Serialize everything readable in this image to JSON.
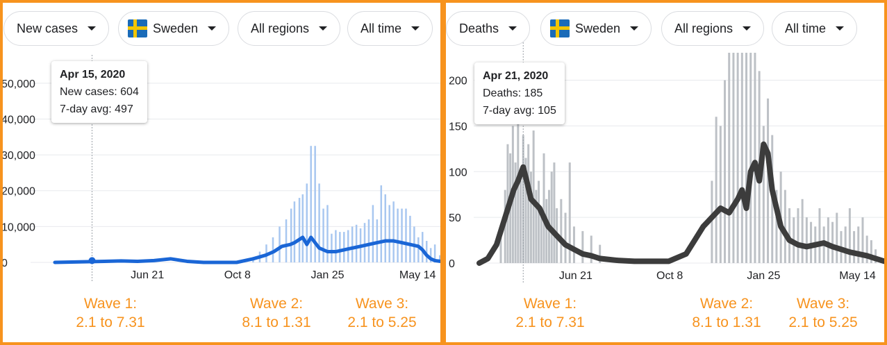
{
  "left_panel": {
    "metric_label": "New cases",
    "country_label": "Sweden",
    "region_label": "All regions",
    "time_label": "All time",
    "tooltip": {
      "date": "Apr 15, 2020",
      "value_line": "New cases: 604",
      "avg_line": "7-day avg: 497"
    },
    "waves": [
      {
        "title": "Wave 1:",
        "range": "2.1 to 7.31"
      },
      {
        "title": "Wave 2:",
        "range": "8.1 to 1.31"
      },
      {
        "title": "Wave 3:",
        "range": "2.1 to 5.25"
      }
    ]
  },
  "right_panel": {
    "metric_label": "Deaths",
    "country_label": "Sweden",
    "region_label": "All regions",
    "time_label": "All time",
    "tooltip": {
      "date": "Apr 21, 2020",
      "value_line": "Deaths: 185",
      "avg_line": "7-day avg: 105"
    },
    "waves": [
      {
        "title": "Wave 1:",
        "range": "2.1 to 7.31"
      },
      {
        "title": "Wave 2:",
        "range": "8.1 to 1.31"
      },
      {
        "title": "Wave 3:",
        "range": "2.1 to 5.25"
      }
    ]
  },
  "colors": {
    "frame": "#F7931E",
    "cases_bar": "#A8C7F0",
    "cases_line": "#1A66D6",
    "deaths_bar": "#BDC1C6",
    "deaths_line": "#3C3C3C",
    "grid": "#E8EAED",
    "flag_blue": "#1A6BB8",
    "flag_yellow": "#F2C500"
  },
  "icons": {
    "dropdown": "caret-down-icon",
    "country": "sweden-flag-icon"
  },
  "chart_data": [
    {
      "type": "bar",
      "title": "",
      "series_label": "New cases",
      "xlabel": "",
      "ylabel": "",
      "x_ticks": [
        "Jun 21",
        "Oct 8",
        "Jan 25",
        "May 14"
      ],
      "x_tick_days": [
        112,
        221,
        330,
        439
      ],
      "x_range_days": [
        0,
        470
      ],
      "x_origin": "2020-03-01",
      "y_ticks": [
        "0",
        "10,000",
        "20,000",
        "30,000",
        "40,000",
        "50,000"
      ],
      "ylim": [
        0,
        55000
      ],
      "grid": true,
      "highlight": {
        "day": 45,
        "value": 497
      },
      "bars_days": [
        240,
        248,
        256,
        264,
        272,
        280,
        286,
        290,
        296,
        300,
        305,
        310,
        315,
        320,
        325,
        330,
        335,
        340,
        345,
        350,
        355,
        360,
        365,
        370,
        375,
        380,
        385,
        390,
        395,
        400,
        405,
        410,
        415,
        420,
        425,
        430,
        435,
        440,
        445,
        450,
        455,
        460,
        466
      ],
      "bars_values": [
        1500,
        3000,
        5000,
        7000,
        10000,
        12000,
        15000,
        17000,
        18000,
        19000,
        22000,
        32500,
        32500,
        22000,
        15000,
        16000,
        8000,
        9000,
        8500,
        8500,
        9000,
        10000,
        10500,
        9500,
        11000,
        12000,
        16000,
        12000,
        21500,
        19000,
        16000,
        17000,
        15000,
        15000,
        15000,
        13000,
        10000,
        7000,
        8500,
        6000,
        4000,
        5000,
        2000
      ],
      "avg_days": [
        0,
        20,
        40,
        60,
        80,
        100,
        120,
        140,
        160,
        180,
        200,
        220,
        240,
        255,
        265,
        275,
        285,
        290,
        300,
        305,
        310,
        320,
        330,
        340,
        350,
        360,
        370,
        380,
        390,
        400,
        410,
        420,
        430,
        440,
        445,
        450,
        455,
        460,
        470
      ],
      "avg_values": [
        0,
        100,
        200,
        300,
        400,
        300,
        500,
        1000,
        300,
        0,
        0,
        0,
        1000,
        2000,
        3000,
        4500,
        5000,
        5500,
        7000,
        5000,
        7000,
        4000,
        3000,
        3000,
        3500,
        4000,
        4500,
        5000,
        5500,
        6000,
        6000,
        5500,
        5000,
        4500,
        3500,
        2000,
        1000,
        500,
        200
      ]
    },
    {
      "type": "bar",
      "title": "",
      "series_label": "Deaths",
      "xlabel": "",
      "ylabel": "",
      "x_ticks": [
        "Jun 21",
        "Oct 8",
        "Jan 25",
        "May 14"
      ],
      "x_tick_days": [
        112,
        221,
        330,
        439
      ],
      "x_range_days": [
        0,
        470
      ],
      "x_origin": "2020-03-01",
      "y_ticks": [
        "0",
        "50",
        "100",
        "150",
        "200"
      ],
      "ylim": [
        0,
        230
      ],
      "grid": true,
      "highlight": {
        "day": 51,
        "value": 105
      },
      "bars_days": [
        25,
        30,
        33,
        36,
        39,
        42,
        45,
        48,
        51,
        54,
        57,
        60,
        63,
        66,
        69,
        72,
        75,
        78,
        81,
        84,
        87,
        90,
        95,
        100,
        105,
        110,
        120,
        130,
        140,
        270,
        275,
        280,
        285,
        290,
        295,
        300,
        305,
        310,
        315,
        320,
        325,
        330,
        335,
        340,
        345,
        350,
        355,
        360,
        365,
        370,
        375,
        380,
        385,
        390,
        395,
        400,
        405,
        410,
        415,
        420,
        425,
        430,
        435,
        440,
        445,
        450,
        455,
        460
      ],
      "bars_values": [
        30,
        80,
        130,
        120,
        150,
        110,
        160,
        90,
        140,
        115,
        130,
        100,
        145,
        80,
        90,
        60,
        120,
        70,
        80,
        100,
        110,
        60,
        70,
        55,
        110,
        40,
        35,
        30,
        20,
        90,
        160,
        150,
        200,
        230,
        230,
        230,
        230,
        230,
        230,
        230,
        210,
        150,
        180,
        140,
        80,
        100,
        80,
        60,
        50,
        60,
        70,
        50,
        45,
        40,
        60,
        40,
        50,
        45,
        55,
        35,
        40,
        60,
        35,
        40,
        50,
        30,
        25,
        15
      ],
      "avg_days": [
        0,
        10,
        20,
        30,
        40,
        45,
        51,
        55,
        60,
        65,
        70,
        80,
        90,
        100,
        110,
        120,
        130,
        140,
        150,
        160,
        180,
        200,
        220,
        240,
        250,
        260,
        270,
        280,
        290,
        300,
        305,
        310,
        315,
        320,
        325,
        330,
        335,
        340,
        345,
        350,
        360,
        370,
        380,
        390,
        400,
        410,
        420,
        430,
        440,
        450,
        460,
        470
      ],
      "avg_values": [
        0,
        5,
        20,
        50,
        80,
        90,
        105,
        90,
        70,
        65,
        60,
        40,
        30,
        20,
        15,
        10,
        8,
        5,
        4,
        3,
        2,
        2,
        2,
        10,
        25,
        40,
        50,
        60,
        55,
        70,
        80,
        60,
        100,
        110,
        90,
        130,
        120,
        80,
        60,
        40,
        25,
        20,
        18,
        20,
        22,
        18,
        15,
        12,
        10,
        8,
        5,
        2
      ]
    }
  ]
}
